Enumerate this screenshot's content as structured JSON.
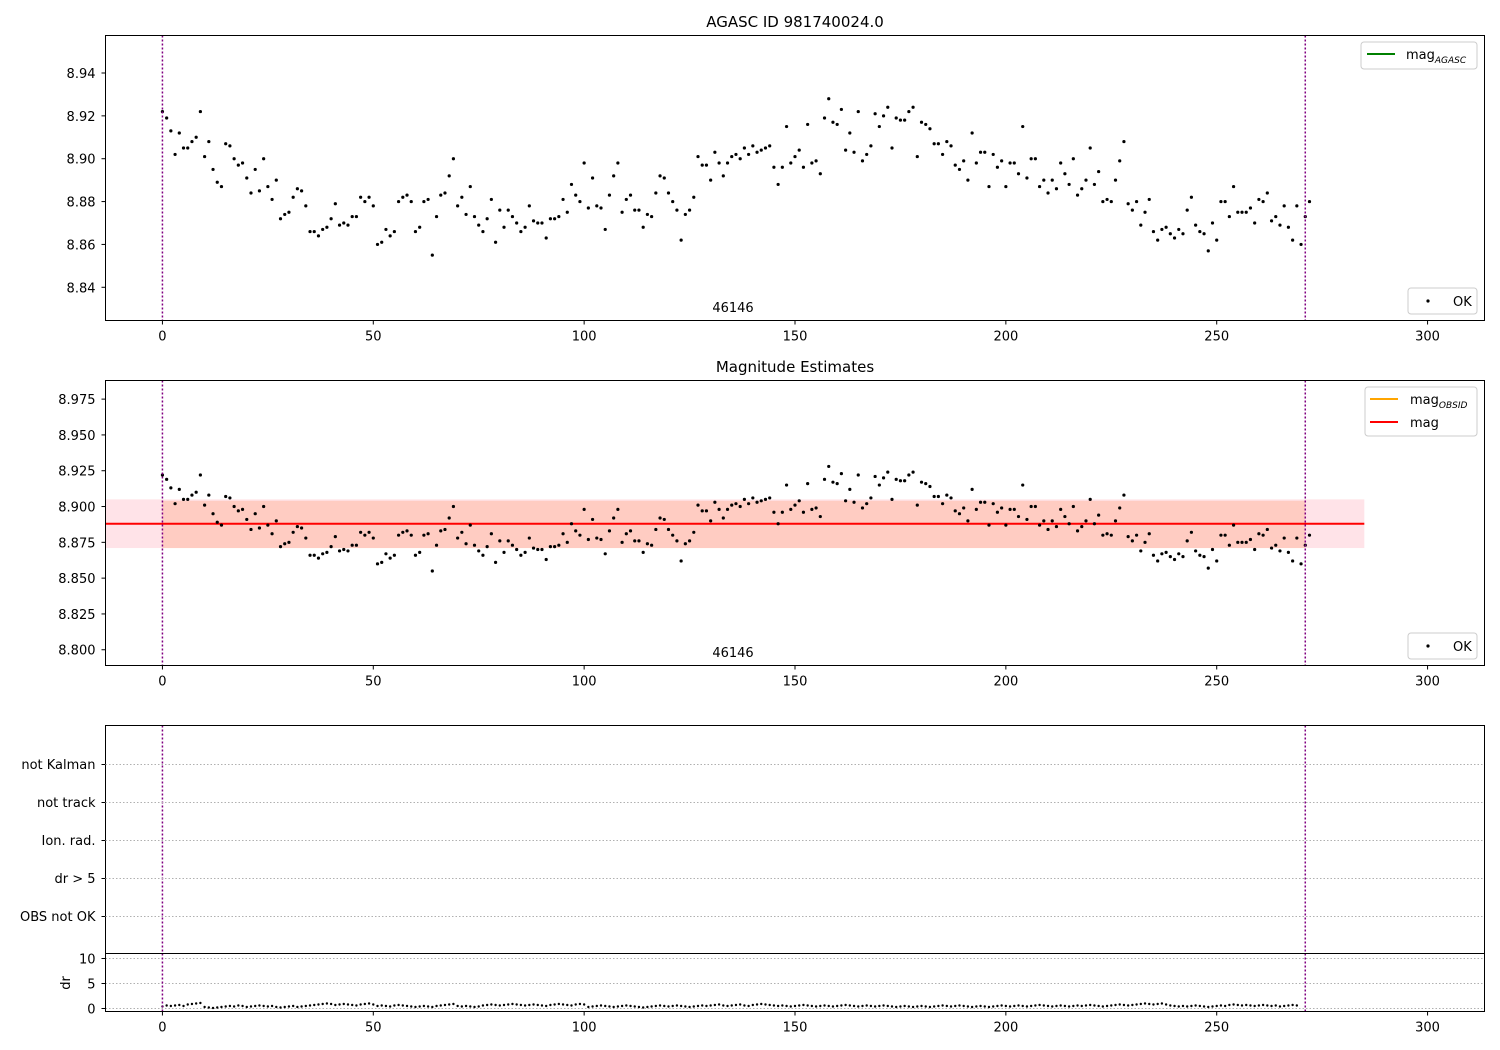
{
  "colors": {
    "points": "#000000",
    "mag_agasc": "#008000",
    "mag_obsid": "#ffa500",
    "mag": "#ff0000",
    "band_outer": "#ffc0cb",
    "band_inner": "#ffa07a",
    "obs_marker": "#800080"
  },
  "chart_data": [
    {
      "type": "scatter",
      "title": "AGASC ID 981740024.0",
      "xlim": [
        -13.5,
        313.5
      ],
      "ylim": [
        8.8245,
        8.9575
      ],
      "x_ticks": [
        0,
        50,
        100,
        150,
        200,
        250,
        300
      ],
      "y_ticks": [
        8.84,
        8.86,
        8.88,
        8.9,
        8.92,
        8.94
      ],
      "y_tick_labels": [
        "8.84",
        "8.86",
        "8.88",
        "8.90",
        "8.92",
        "8.94"
      ],
      "obs_markers": [
        0,
        271
      ],
      "annotation": {
        "text": "46146",
        "x": 135
      },
      "legend_lines": [
        {
          "name": "mag",
          "sub": "AGASC",
          "color_key": "mag_agasc"
        }
      ],
      "legend_points": [
        {
          "name": "OK"
        }
      ],
      "series": [
        {
          "name": "OK",
          "points_ref": "shared"
        }
      ]
    },
    {
      "type": "scatter",
      "title": "Magnitude Estimates",
      "xlim": [
        -13.5,
        313.5
      ],
      "ylim": [
        8.789,
        8.988
      ],
      "x_ticks": [
        0,
        50,
        100,
        150,
        200,
        250,
        300
      ],
      "y_ticks": [
        8.8,
        8.825,
        8.85,
        8.875,
        8.9,
        8.925,
        8.95,
        8.975
      ],
      "y_tick_labels": [
        "8.800",
        "8.825",
        "8.850",
        "8.875",
        "8.900",
        "8.925",
        "8.950",
        "8.975"
      ],
      "obs_markers": [
        0,
        271
      ],
      "annotation": {
        "text": "46146",
        "x": 135
      },
      "band_outer": {
        "x": [
          -13.5,
          285
        ],
        "y": [
          8.871,
          8.905
        ]
      },
      "band_inner": {
        "x": [
          0,
          271
        ],
        "y": [
          8.871,
          8.904
        ]
      },
      "mag_line": {
        "x": [
          -13.5,
          285
        ],
        "y": 8.888
      },
      "legend_lines": [
        {
          "name": "mag",
          "sub": "OBSID",
          "color_key": "mag_obsid"
        },
        {
          "name": "mag",
          "sub": "",
          "color_key": "mag"
        }
      ],
      "legend_points": [
        {
          "name": "OK"
        }
      ],
      "series": [
        {
          "name": "OK",
          "points_ref": "shared"
        }
      ]
    },
    {
      "type": "scatter",
      "title": "",
      "xlim": [
        -13.5,
        313.5
      ],
      "flag_labels": [
        "not Kalman",
        "not track",
        "Ion. rad.",
        "dr > 5",
        "OBS not OK"
      ],
      "obs_markers": [
        0,
        271
      ]
    },
    {
      "type": "scatter",
      "title": "",
      "ylabel": "dr",
      "xlim": [
        -13.5,
        313.5
      ],
      "ylim": [
        -0.6,
        11
      ],
      "x_ticks": [
        0,
        50,
        100,
        150,
        200,
        250,
        300
      ],
      "y_ticks": [
        0,
        5,
        10
      ],
      "y_tick_labels": [
        "0",
        "5",
        "10"
      ],
      "obs_markers": [
        0,
        271
      ]
    }
  ],
  "mag_series": {
    "x_start": 0,
    "y": [
      8.922,
      8.919,
      8.913,
      8.902,
      8.912,
      8.905,
      8.905,
      8.908,
      8.91,
      8.922,
      8.901,
      8.908,
      8.895,
      8.889,
      8.887,
      8.907,
      8.906,
      8.9,
      8.897,
      8.898,
      8.891,
      8.884,
      8.895,
      8.885,
      8.9,
      8.887,
      8.881,
      8.89,
      8.872,
      8.874,
      8.875,
      8.882,
      8.886,
      8.885,
      8.878,
      8.866,
      8.866,
      8.864,
      8.867,
      8.868,
      8.872,
      8.879,
      8.869,
      8.87,
      8.869,
      8.873,
      8.873,
      8.882,
      8.88,
      8.882,
      8.878,
      8.86,
      8.861,
      8.867,
      8.864,
      8.866,
      8.88,
      8.882,
      8.883,
      8.88,
      8.866,
      8.868,
      8.88,
      8.881,
      8.855,
      8.873,
      8.883,
      8.884,
      8.892,
      8.9,
      8.878,
      8.882,
      8.874,
      8.887,
      8.873,
      8.869,
      8.866,
      8.872,
      8.881,
      8.861,
      8.876,
      8.868,
      8.876,
      8.873,
      8.87,
      8.866,
      8.868,
      8.878,
      8.871,
      8.87,
      8.87,
      8.863,
      8.872,
      8.872,
      8.873,
      8.881,
      8.875,
      8.888,
      8.883,
      8.88,
      8.898,
      8.877,
      8.891,
      8.878,
      8.877,
      8.867,
      8.883,
      8.892,
      8.898,
      8.875,
      8.881,
      8.883,
      8.876,
      8.876,
      8.868,
      8.874,
      8.873,
      8.884,
      8.892,
      8.891,
      8.884,
      8.88,
      8.876,
      8.862,
      8.874,
      8.876,
      8.882,
      8.901,
      8.897,
      8.897,
      8.89,
      8.903,
      8.898,
      8.892,
      8.898,
      8.901,
      8.902,
      8.9,
      8.905,
      8.902,
      8.906,
      8.903,
      8.904,
      8.905,
      8.906,
      8.896,
      8.888,
      8.896,
      8.915,
      8.898,
      8.901,
      8.904,
      8.896,
      8.916,
      8.898,
      8.899,
      8.893,
      8.919,
      8.928,
      8.917,
      8.916,
      8.923,
      8.904,
      8.912,
      8.903,
      8.922,
      8.899,
      8.902,
      8.906,
      8.921,
      8.915,
      8.92,
      8.924,
      8.905,
      8.919,
      8.918,
      8.918,
      8.922,
      8.924,
      8.901,
      8.917,
      8.916,
      8.914,
      8.907,
      8.907,
      8.902,
      8.908,
      8.906,
      8.897,
      8.895,
      8.899,
      8.89,
      8.912,
      8.898,
      8.903,
      8.903,
      8.887,
      8.902,
      8.896,
      8.899,
      8.887,
      8.898,
      8.898,
      8.893,
      8.915,
      8.891,
      8.9,
      8.9,
      8.887,
      8.89,
      8.884,
      8.89,
      8.886,
      8.898,
      8.893,
      8.888,
      8.9,
      8.883,
      8.886,
      8.89,
      8.905,
      8.888,
      8.894,
      8.88,
      8.881,
      8.88,
      8.89,
      8.899,
      8.908,
      8.879,
      8.876,
      8.88,
      8.869,
      8.875,
      8.881,
      8.866,
      8.862,
      8.867,
      8.868,
      8.865,
      8.863,
      8.867,
      8.865,
      8.876,
      8.882,
      8.869,
      8.866,
      8.865,
      8.857,
      8.87,
      8.862,
      8.88,
      8.88,
      8.873,
      8.887,
      8.875,
      8.875,
      8.875,
      8.877,
      8.87,
      8.881,
      8.88,
      8.884,
      8.871,
      8.873,
      8.869,
      8.878,
      8.868,
      8.862,
      8.878,
      8.86,
      8.873,
      8.88
    ]
  },
  "dr_series": {
    "x_start": 0,
    "y": [
      0.4,
      0.6,
      0.5,
      0.6,
      0.7,
      0.5,
      0.8,
      0.9,
      1.0,
      1.1,
      0.3,
      0.2,
      0.1,
      0.2,
      0.3,
      0.4,
      0.5,
      0.4,
      0.6,
      0.5,
      0.3,
      0.4,
      0.5,
      0.6,
      0.5,
      0.4,
      0.5,
      0.3,
      0.2,
      0.3,
      0.4,
      0.5,
      0.3,
      0.4,
      0.5,
      0.6,
      0.7,
      0.8,
      0.9,
      1.0,
      0.9,
      0.7,
      0.8,
      0.9,
      0.8,
      0.7,
      0.6,
      0.8,
      0.9,
      1.0,
      0.8,
      0.5,
      0.6,
      0.5,
      0.4,
      0.6,
      0.7,
      0.6,
      0.5,
      0.4,
      0.3,
      0.4,
      0.5,
      0.4,
      0.3,
      0.5,
      0.6,
      0.7,
      0.8,
      0.9,
      0.5,
      0.4,
      0.5,
      0.4,
      0.3,
      0.4,
      0.6,
      0.7,
      0.8,
      0.7,
      0.6,
      0.7,
      0.8,
      0.9,
      0.8,
      0.7,
      0.6,
      0.7,
      0.8,
      0.7,
      0.6,
      0.5,
      0.7,
      0.8,
      0.9,
      0.8,
      0.7,
      0.6,
      0.8,
      0.9,
      0.8,
      0.3,
      0.4,
      0.5,
      0.6,
      0.5,
      0.4,
      0.3,
      0.4,
      0.5,
      0.6,
      0.5,
      0.4,
      0.3,
      0.2,
      0.3,
      0.4,
      0.5,
      0.6,
      0.5,
      0.4,
      0.5,
      0.6,
      0.5,
      0.4,
      0.3,
      0.4,
      0.5,
      0.6,
      0.5,
      0.6,
      0.7,
      0.8,
      0.6,
      0.5,
      0.6,
      0.7,
      0.8,
      0.6,
      0.5,
      0.7,
      0.8,
      0.9,
      0.8,
      0.7,
      0.6,
      0.5,
      0.6,
      0.5,
      0.4,
      0.5,
      0.6,
      0.7,
      0.6,
      0.5,
      0.4,
      0.5,
      0.6,
      0.5,
      0.4,
      0.5,
      0.6,
      0.7,
      0.6,
      0.5,
      0.4,
      0.5,
      0.6,
      0.5,
      0.4,
      0.5,
      0.6,
      0.5,
      0.4,
      0.3,
      0.4,
      0.5,
      0.4,
      0.3,
      0.4,
      0.5,
      0.4,
      0.3,
      0.4,
      0.5,
      0.6,
      0.5,
      0.4,
      0.5,
      0.6,
      0.5,
      0.4,
      0.3,
      0.4,
      0.5,
      0.4,
      0.3,
      0.4,
      0.5,
      0.6,
      0.5,
      0.4,
      0.5,
      0.6,
      0.5,
      0.4,
      0.5,
      0.6,
      0.7,
      0.6,
      0.5,
      0.4,
      0.5,
      0.6,
      0.5,
      0.4,
      0.5,
      0.6,
      0.5,
      0.6,
      0.7,
      0.6,
      0.5,
      0.4,
      0.5,
      0.6,
      0.7,
      0.8,
      0.7,
      0.6,
      0.7,
      0.8,
      0.9,
      1.0,
      0.9,
      0.8,
      0.9,
      1.0,
      0.8,
      0.6,
      0.5,
      0.4,
      0.5,
      0.4,
      0.5,
      0.6,
      0.5,
      0.4,
      0.3,
      0.4,
      0.5,
      0.6,
      0.5,
      0.7,
      0.8,
      0.7,
      0.6,
      0.7,
      0.6,
      0.5,
      0.6,
      0.7,
      0.6,
      0.5,
      0.6,
      0.4,
      0.5,
      0.6,
      0.7,
      0.6
    ]
  }
}
